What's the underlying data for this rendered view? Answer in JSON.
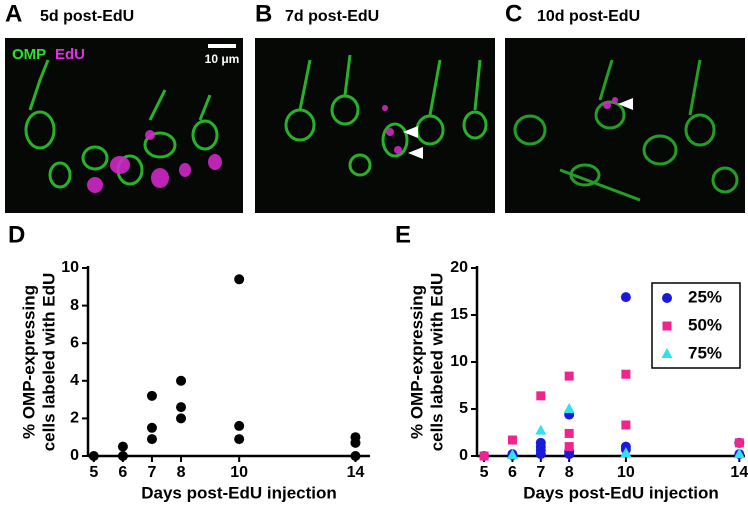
{
  "images": [
    {
      "panel": "A",
      "title": "5d post-EdU",
      "legend_green": "OMP",
      "legend_magenta": "EdU",
      "scale": "10 μm"
    },
    {
      "panel": "B",
      "title": "7d post-EdU"
    },
    {
      "panel": "C",
      "title": "10d post-EdU"
    }
  ],
  "chart_data": [
    {
      "type": "scatter",
      "panel": "D",
      "xlabel": "Days post-EdU injection",
      "ylabel": [
        "% OMP-expressing",
        "cells labeled with EdU"
      ],
      "xlim": [
        4.8,
        14.5
      ],
      "xticks": [
        5,
        6,
        7,
        8,
        10,
        14
      ],
      "ylim": [
        0,
        10
      ],
      "yticks": [
        0,
        2,
        4,
        6,
        8,
        10
      ],
      "series": [
        {
          "color": "#000000",
          "marker": "circle",
          "x": [
            5,
            6,
            6,
            7,
            7,
            7,
            8,
            8,
            8,
            10,
            10,
            10,
            14,
            14,
            14
          ],
          "values": [
            0,
            0.5,
            0,
            3.2,
            1.5,
            0.9,
            4.0,
            2.6,
            2.0,
            9.4,
            1.6,
            0.9,
            1.0,
            0.7,
            0
          ]
        }
      ]
    },
    {
      "type": "scatter",
      "panel": "E",
      "xlabel": "Days post-EdU injection",
      "ylabel": [
        "% OMP-expressing",
        "cells labeled with EdU"
      ],
      "xlim": [
        4.75,
        14.2
      ],
      "xticks": [
        5,
        6,
        7,
        8,
        10,
        14
      ],
      "ylim": [
        0,
        20
      ],
      "yticks": [
        0,
        5,
        10,
        15,
        20
      ],
      "legend": "upper right",
      "series": [
        {
          "name": "25%",
          "color": "#1a1adb",
          "marker": "circle",
          "x": [
            5,
            6,
            6,
            7,
            7,
            7,
            7,
            8,
            8,
            8,
            10,
            10,
            10,
            14,
            14
          ],
          "values": [
            0,
            0.2,
            0.1,
            1.4,
            1.0,
            0.6,
            0.2,
            4.4,
            0.5,
            0.2,
            16.9,
            1.0,
            0.7,
            1.4,
            0.2
          ]
        },
        {
          "name": "50%",
          "color": "#f0248c",
          "marker": "square",
          "x": [
            5,
            6,
            7,
            8,
            8,
            8,
            10,
            10,
            14
          ],
          "values": [
            0,
            1.7,
            6.4,
            8.5,
            2.4,
            1.0,
            8.7,
            3.3,
            1.4
          ]
        },
        {
          "name": "75%",
          "color": "#33e0f0",
          "marker": "triangle",
          "x": [
            6,
            7,
            8,
            10,
            14
          ],
          "values": [
            0.1,
            2.7,
            5.0,
            0.3,
            0.2
          ]
        }
      ]
    }
  ]
}
